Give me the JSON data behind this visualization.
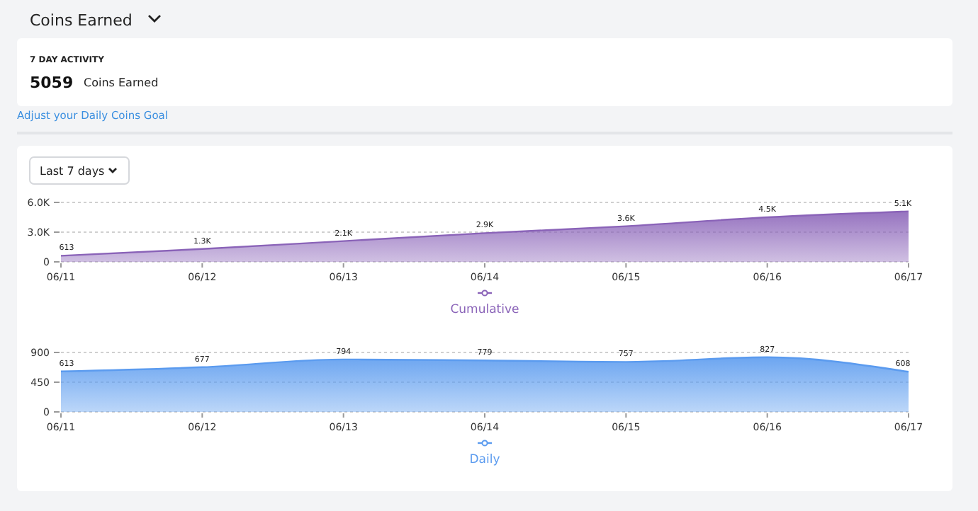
{
  "chart_data": [
    {
      "type": "other",
      "title": "Coins Earned",
      "annotations": [
        "7 DAY ACTIVITY",
        "5059",
        "Coins Earned",
        "Adjust your Daily Coins Goal",
        "Last 7 days"
      ]
    },
    {
      "type": "area",
      "categories": [
        "06/11",
        "06/12",
        "06/13",
        "06/14",
        "06/15",
        "06/16",
        "06/17"
      ],
      "series": [
        {
          "name": "Cumulative",
          "color": "#8a63b8",
          "values": [
            613,
            1300,
            2100,
            2900,
            3600,
            4500,
            5100
          ],
          "value_labels": [
            "613",
            "1.3K",
            "2.1K",
            "2.9K",
            "3.6K",
            "4.5K",
            "5.1K"
          ]
        }
      ],
      "ylim": [
        0,
        6000
      ],
      "yticks": [
        0,
        {
          "value": 3000,
          "label": "3.0K"
        },
        {
          "value": 6000,
          "label": "6.0K"
        }
      ],
      "grid": "y",
      "legend": "bottom"
    },
    {
      "type": "area",
      "categories": [
        "06/11",
        "06/12",
        "06/13",
        "06/14",
        "06/15",
        "06/16",
        "06/17"
      ],
      "series": [
        {
          "name": "Daily",
          "color": "#5b9bef",
          "values": [
            613,
            677,
            794,
            779,
            757,
            827,
            608
          ]
        }
      ],
      "ylim": [
        0,
        900
      ],
      "yticks": [
        0,
        450,
        900
      ],
      "grid": "y",
      "legend": "bottom",
      "data_labels": true
    }
  ]
}
